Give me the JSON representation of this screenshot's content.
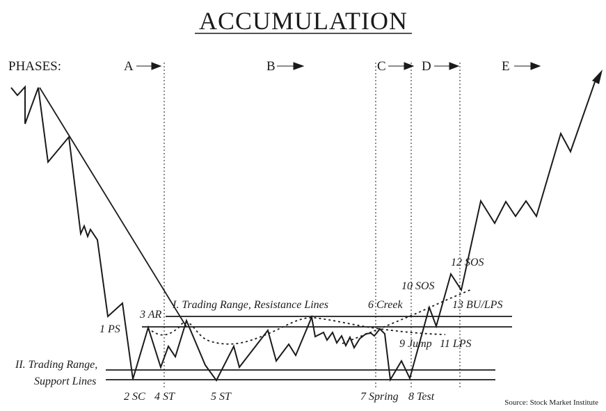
{
  "title": "ACCUMULATION",
  "phases": {
    "heading": "PHASES:",
    "items": [
      {
        "id": "a",
        "letter": "A"
      },
      {
        "id": "b",
        "letter": "B"
      },
      {
        "id": "c",
        "letter": "C"
      },
      {
        "id": "d",
        "letter": "D"
      },
      {
        "id": "e",
        "letter": "E"
      }
    ]
  },
  "labels": {
    "ps": "1 PS",
    "sc": "2 SC",
    "ar": "3 AR",
    "st4": "4 ST",
    "st5": "5 ST",
    "creek": "6 Creek",
    "spring": "7 Spring",
    "test": "8 Test",
    "jump": "9 Jump",
    "sos10": "10 SOS",
    "lps11": "11 LPS",
    "sos12": "12 SOS",
    "bu_lps": "13 BU/LPS",
    "resistance": "I. Trading Range, Resistance Lines",
    "support_line1": "II. Trading Range,",
    "support_line2": "Support Lines"
  },
  "source": "Source: Stock Market Institute"
}
